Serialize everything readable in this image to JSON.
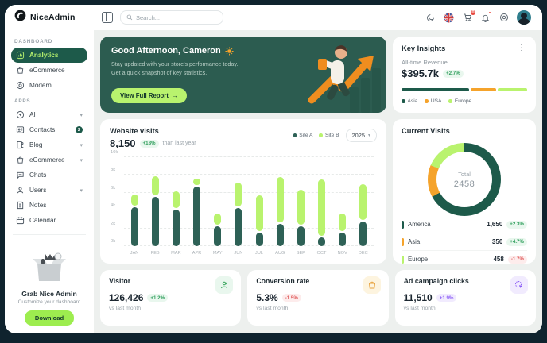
{
  "app": {
    "logo_text": "NiceAdmin"
  },
  "icons": {
    "kebab": "⋮",
    "chevron_down": "▾",
    "arrow_right": "→",
    "sun": "☀"
  },
  "header": {
    "search_placeholder": "Search...",
    "cart_badge": "0"
  },
  "sidebar": {
    "section1_label": "DASHBOARD",
    "section2_label": "APPS",
    "dash_items": [
      {
        "label": "Analytics"
      },
      {
        "label": "eCommerce"
      },
      {
        "label": "Modern"
      }
    ],
    "app_items": [
      {
        "label": "AI",
        "chevron": "▾"
      },
      {
        "label": "Contacts",
        "badge": "2"
      },
      {
        "label": "Blog",
        "chevron": "▾"
      },
      {
        "label": "eCommerce",
        "chevron": "▾"
      },
      {
        "label": "Chats"
      },
      {
        "label": "Users",
        "chevron": "▾"
      },
      {
        "label": "Notes"
      },
      {
        "label": "Calendar"
      }
    ],
    "promo": {
      "title": "Grab Nice Admin",
      "subtitle": "Customize your dashboard",
      "button_label": "Download"
    }
  },
  "greeting": {
    "title": "Good Afternoon, Cameron",
    "line1": "Stay updated with your store's performance today.",
    "line2": "Get a quick snapshot of key statistics.",
    "button_label": "View Full Report"
  },
  "key_insights": {
    "title": "Key Insights",
    "revenue_label": "All-time Revenue",
    "revenue_value": "$395.7k",
    "revenue_change": "+2.7%",
    "segments": [
      {
        "label": "Asia",
        "color": "#1d5a4a",
        "pct": 55
      },
      {
        "label": "USA",
        "color": "#f5a32b",
        "pct": 21
      },
      {
        "label": "Europe",
        "color": "#b9f36e",
        "pct": 24
      }
    ]
  },
  "website_visits": {
    "title": "Website visits",
    "value": "8,150",
    "change": "+18%",
    "caption": "than last year",
    "year_select": "2025",
    "legend": [
      {
        "label": "Site A",
        "color": "#2e6156"
      },
      {
        "label": "Site B",
        "color": "#b9f36e"
      }
    ]
  },
  "current_visits": {
    "title": "Current Visits",
    "total_label": "Total",
    "total_value": "2458",
    "rows": [
      {
        "label": "America",
        "value": "1,650",
        "change": "+2.3%",
        "tone": "green",
        "color": "#1d5a4a"
      },
      {
        "label": "Asia",
        "value": "350",
        "change": "+4.7%",
        "tone": "green",
        "color": "#f5a32b"
      },
      {
        "label": "Europe",
        "value": "458",
        "change": "-1.7%",
        "tone": "red",
        "color": "#b9f36e"
      }
    ]
  },
  "kpis": [
    {
      "title": "Visitor",
      "value": "126,426",
      "change": "+1.2%",
      "tone": "green",
      "caption": "vs last month"
    },
    {
      "title": "Conversion rate",
      "value": "5.3%",
      "change": "-1.5%",
      "tone": "red",
      "caption": "vs last month"
    },
    {
      "title": "Ad campaign clicks",
      "value": "11,510",
      "change": "+1.9%",
      "tone": "purple",
      "caption": "vs last month"
    }
  ],
  "chart_data": [
    {
      "type": "bar",
      "stacked": true,
      "title": "Website visits",
      "categories": [
        "Jan",
        "Feb",
        "Mar",
        "Apr",
        "May",
        "Jun",
        "Jul",
        "Aug",
        "Sep",
        "Oct",
        "Nov",
        "Dec"
      ],
      "series": [
        {
          "name": "Site A",
          "color": "#2e6156",
          "values": [
            4.4,
            5.5,
            4.1,
            6.7,
            2.2,
            4.3,
            1.5,
            2.5,
            2.2,
            1.0,
            1.5,
            2.8
          ]
        },
        {
          "name": "Site B",
          "color": "#b9f36e",
          "values": [
            1.2,
            2.2,
            1.9,
            0.7,
            1.3,
            2.7,
            4.0,
            5.1,
            4.0,
            6.3,
            2.0,
            4.0
          ]
        }
      ],
      "unit": "k",
      "ylim": [
        0,
        10
      ],
      "yticks": [
        0,
        2,
        4,
        6,
        8,
        10
      ],
      "grid": true,
      "legend_position": "top-right"
    },
    {
      "type": "pie",
      "title": "Current Visits",
      "labels": [
        "America",
        "Asia",
        "Europe"
      ],
      "values": [
        1650,
        350,
        458
      ],
      "colors": [
        "#1d5a4a",
        "#f5a32b",
        "#b9f36e"
      ],
      "total": 2458,
      "center_label": "Total"
    }
  ]
}
